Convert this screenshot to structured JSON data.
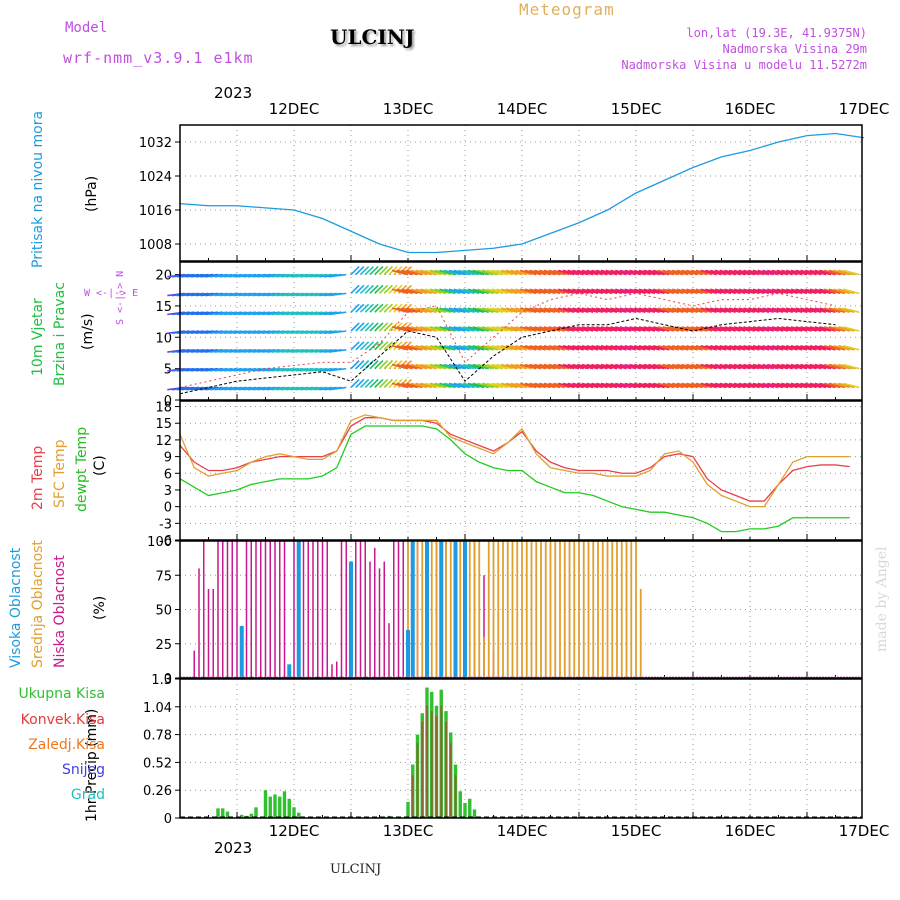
{
  "header": {
    "model_label": "Model",
    "model_name": "wrf-nmm_v3.9.1 e1km",
    "station": "ULCINJ",
    "meteogram": "Meteogram",
    "lonlat": "lon,lat (19.3E, 41.9375N)",
    "elevation": "Nadmorska Visina 29m",
    "model_elevation": "Nadmorska Visina u modelu 11.5272m",
    "year": "2023",
    "footer_station": "ULCINJ",
    "credit": "made by Angel"
  },
  "colors": {
    "pressure": "#1e9be0",
    "temp2m": "#e8404a",
    "sfc": "#e0a030",
    "dewpt": "#20cc20",
    "visoka": "#1e9be0",
    "srednja": "#e0a030",
    "niska": "#c8198c",
    "ukupna": "#30c030",
    "konvek": "#e83838",
    "zaledj": "#f07820",
    "snijeg": "#4040e0",
    "grad": "#20c0c0",
    "wind_axis": "#c050e0"
  },
  "x_axis": {
    "days": [
      "12DEC",
      "13DEC",
      "14DEC",
      "15DEC",
      "16DEC",
      "17DEC"
    ]
  },
  "panels": {
    "pressure": {
      "lab1": "Pritisak na nivou mora",
      "unit": "(hPa)"
    },
    "wind": {
      "lab1": "10m Vjetar",
      "lab2": "Brzina i Pravac",
      "unit": "(m/s)",
      "compass": "W <-|-> E",
      "ns": "S <-|-> N"
    },
    "temp": {
      "lab1": "2m Temp",
      "lab2": "SFC Temp",
      "lab3": "dewpt Temp",
      "unit": "(C)"
    },
    "cloud": {
      "lab1": "Visoka Oblacnost",
      "lab2": "Srednja Oblacnost",
      "lab3": "Niska Oblacnost",
      "unit": "(%)"
    },
    "precip": {
      "unit": "1hr Precip (mm)",
      "legend": [
        "Ukupna Kisa",
        "Konvek.Kisa",
        "Zaledj.Kisa",
        "Snijeg",
        "Grad"
      ]
    }
  },
  "chart_data": [
    {
      "type": "line",
      "ylabel": "(hPa)",
      "ylim": [
        1004,
        1036
      ],
      "yticks": [
        "1032",
        "1024",
        "1016",
        "1008"
      ],
      "yticks_values": [
        1032,
        1024,
        1016,
        1008
      ],
      "x_hours": [
        0,
        6,
        12,
        18,
        24,
        30,
        36,
        42,
        48,
        54,
        60,
        66,
        72,
        78,
        84,
        90,
        96,
        102,
        108,
        114,
        120,
        126,
        132,
        138,
        144
      ],
      "series": [
        {
          "values": [
            1017.5,
            1017,
            1017,
            1016.5,
            1016,
            1014,
            1011,
            1008,
            1006,
            1006,
            1006.5,
            1007,
            1008,
            1010.5,
            1013,
            1016,
            1020,
            1023,
            1026,
            1028.5,
            1030,
            1032,
            1033.5,
            1034,
            1033
          ]
        }
      ]
    },
    {
      "type": "line",
      "ylabel": "(m/s)",
      "ylim": [
        0,
        22
      ],
      "yticks": [
        "20",
        "15",
        "10",
        "5",
        "0"
      ],
      "yticks_values": [
        20,
        15,
        10,
        5,
        0
      ],
      "x_hours": [
        0,
        6,
        12,
        18,
        24,
        30,
        36,
        42,
        48,
        54,
        60,
        66,
        72,
        78,
        84,
        90,
        96,
        102,
        108,
        114,
        120,
        126,
        132,
        138,
        144
      ],
      "series": [
        {
          "values": [
            1,
            2,
            3,
            3.5,
            4,
            4.5,
            3,
            7,
            11,
            10,
            3,
            7,
            10,
            11,
            12,
            12,
            13,
            12,
            11,
            12,
            12.5,
            13,
            12.5,
            12,
            8
          ]
        },
        {
          "values": [
            2,
            3,
            4,
            5,
            5.5,
            6,
            6,
            9,
            14,
            15,
            6,
            10,
            14,
            16,
            17,
            16,
            17,
            16,
            15,
            16,
            16,
            17,
            16,
            15,
            13
          ]
        }
      ]
    },
    {
      "type": "line",
      "ylabel": "(C)",
      "ylim": [
        -6,
        19
      ],
      "yticks": [
        "18",
        "15",
        "12",
        "9",
        "6",
        "3",
        "0",
        "-3",
        "-6"
      ],
      "yticks_values": [
        18,
        15,
        12,
        9,
        6,
        3,
        0,
        -3,
        -6
      ],
      "x_hours": [
        0,
        3,
        6,
        9,
        12,
        15,
        18,
        21,
        24,
        27,
        30,
        33,
        36,
        39,
        42,
        45,
        48,
        51,
        54,
        57,
        60,
        63,
        66,
        69,
        72,
        75,
        78,
        81,
        84,
        87,
        90,
        93,
        96,
        99,
        102,
        105,
        108,
        111,
        114,
        117,
        120,
        123,
        126,
        129,
        132,
        135,
        138,
        141,
        144
      ],
      "series": [
        {
          "name": "2m Temp",
          "values": [
            11,
            8,
            6.5,
            6.5,
            7,
            8,
            8.5,
            9,
            9,
            9,
            9,
            10,
            14.5,
            16,
            16,
            15.5,
            15.5,
            15.5,
            15,
            13,
            12,
            11,
            10,
            11.5,
            13.5,
            10,
            8,
            7,
            6.5,
            6.5,
            6.5,
            6,
            6,
            7,
            9,
            9.5,
            9,
            5,
            3,
            2,
            1,
            1,
            4,
            6.5,
            7.2,
            7.5,
            7.5,
            7.2,
            7
          ]
        },
        {
          "name": "SFC Temp",
          "values": [
            13,
            7,
            5.5,
            6,
            6.5,
            8,
            9,
            9.5,
            9,
            8.5,
            8.5,
            10,
            15.5,
            16.5,
            16,
            15.5,
            15.5,
            15.5,
            15.5,
            12.5,
            11.5,
            10.5,
            9.5,
            11.5,
            14,
            9.5,
            7,
            6.5,
            6,
            6,
            5.5,
            5.5,
            5.5,
            6.5,
            9.5,
            10,
            8,
            4,
            2,
            1,
            0,
            0,
            4,
            8,
            9,
            9,
            9,
            9,
            9
          ]
        },
        {
          "name": "dewpt Temp",
          "values": [
            5,
            3.5,
            2,
            2.5,
            3,
            4,
            4.5,
            5,
            5,
            5,
            5.5,
            7,
            13,
            14.5,
            14.5,
            14.5,
            14.5,
            14.5,
            14,
            12,
            9.5,
            8,
            7,
            6.5,
            6.5,
            4.5,
            3.5,
            2.5,
            2.5,
            2,
            1,
            0,
            -0.5,
            -1,
            -1,
            -1.5,
            -2,
            -3,
            -4.5,
            -4.5,
            -4,
            -4,
            -3.5,
            -2,
            -2,
            -2,
            -2,
            -2,
            -2
          ]
        }
      ]
    },
    {
      "type": "bar",
      "ylabel": "(%)",
      "ylim": [
        0,
        100
      ],
      "yticks": [
        "100",
        "75",
        "50",
        "25",
        "0"
      ],
      "yticks_values": [
        100,
        75,
        50,
        25,
        0
      ],
      "series": [
        {
          "name": "Niska Oblacnost",
          "x_hours": [
            3,
            4,
            5,
            6,
            7,
            8,
            9,
            10,
            11,
            12,
            13,
            14,
            15,
            16,
            17,
            18,
            19,
            20,
            21,
            22,
            24,
            25,
            26,
            27,
            28,
            29,
            30,
            31,
            32,
            33,
            34,
            35,
            37,
            38,
            39,
            40,
            41,
            42,
            43,
            44,
            45,
            46,
            47,
            50,
            51,
            52,
            53,
            54,
            55,
            56,
            57,
            58,
            59,
            60,
            61,
            62,
            64,
            65,
            66
          ],
          "values": [
            20,
            80,
            100,
            65,
            65,
            100,
            100,
            100,
            100,
            100,
            38,
            100,
            100,
            100,
            100,
            100,
            100,
            100,
            100,
            100,
            100,
            100,
            100,
            100,
            100,
            100,
            100,
            100,
            10,
            12,
            100,
            100,
            100,
            100,
            100,
            85,
            95,
            80,
            85,
            40,
            100,
            100,
            100,
            100,
            100,
            100,
            100,
            100,
            100,
            100,
            100,
            100,
            100,
            100,
            100,
            100,
            75,
            75,
            20
          ]
        },
        {
          "name": "Srednja Oblacnost",
          "x_hours": [
            48,
            49,
            50,
            51,
            52,
            53,
            54,
            55,
            56,
            57,
            58,
            59,
            60,
            61,
            62,
            63,
            64,
            65,
            66,
            67,
            68,
            69,
            70,
            71,
            72,
            73,
            74,
            75,
            76,
            77,
            78,
            79,
            80,
            81,
            82,
            83,
            84,
            85,
            86,
            87,
            88,
            89,
            90,
            91,
            92,
            93,
            94,
            95,
            96,
            97
          ],
          "values": [
            100,
            100,
            100,
            100,
            100,
            100,
            100,
            100,
            100,
            100,
            100,
            100,
            100,
            100,
            100,
            100,
            30,
            100,
            100,
            100,
            100,
            100,
            100,
            100,
            100,
            100,
            100,
            100,
            100,
            100,
            100,
            100,
            100,
            100,
            100,
            100,
            100,
            100,
            100,
            100,
            100,
            100,
            100,
            100,
            100,
            100,
            100,
            100,
            100,
            65
          ]
        },
        {
          "name": "Visoka Oblacnost",
          "x_hours": [
            13,
            23,
            25,
            36,
            48,
            49,
            52,
            55,
            58,
            60
          ],
          "values": [
            38,
            10,
            100,
            85,
            35,
            100,
            100,
            100,
            100,
            100
          ]
        }
      ]
    },
    {
      "type": "bar",
      "ylabel": "1hr Precip (mm)",
      "ylim": [
        0,
        1.3
      ],
      "yticks": [
        "1.3",
        "1.04",
        "0.78",
        "0.52",
        "0.26",
        "0"
      ],
      "yticks_values": [
        1.3,
        1.04,
        0.78,
        0.52,
        0.26,
        0
      ],
      "series": [
        {
          "name": "Ukupna Kisa",
          "x_hours": [
            8,
            9,
            10,
            13,
            14,
            15,
            16,
            18,
            19,
            20,
            21,
            22,
            23,
            24,
            25,
            44,
            48,
            49,
            50,
            51,
            52,
            53,
            54,
            55,
            56,
            57,
            58,
            59,
            60,
            61,
            62
          ],
          "values": [
            0.09,
            0.09,
            0.06,
            0.03,
            0.02,
            0.04,
            0.1,
            0.26,
            0.2,
            0.22,
            0.2,
            0.25,
            0.18,
            0.1,
            0.05,
            0.02,
            0.15,
            0.5,
            0.78,
            0.98,
            1.22,
            1.18,
            1.05,
            1.2,
            1.0,
            0.8,
            0.5,
            0.25,
            0.14,
            0.18,
            0.08
          ]
        },
        {
          "name": "Konvek.Kisa",
          "x_hours": [
            49,
            50,
            51,
            52,
            53,
            54,
            55,
            56,
            57,
            58
          ],
          "values": [
            0.4,
            0.7,
            0.9,
            1.05,
            1.0,
            0.95,
            1.05,
            0.9,
            0.7,
            0.4
          ]
        }
      ]
    }
  ]
}
